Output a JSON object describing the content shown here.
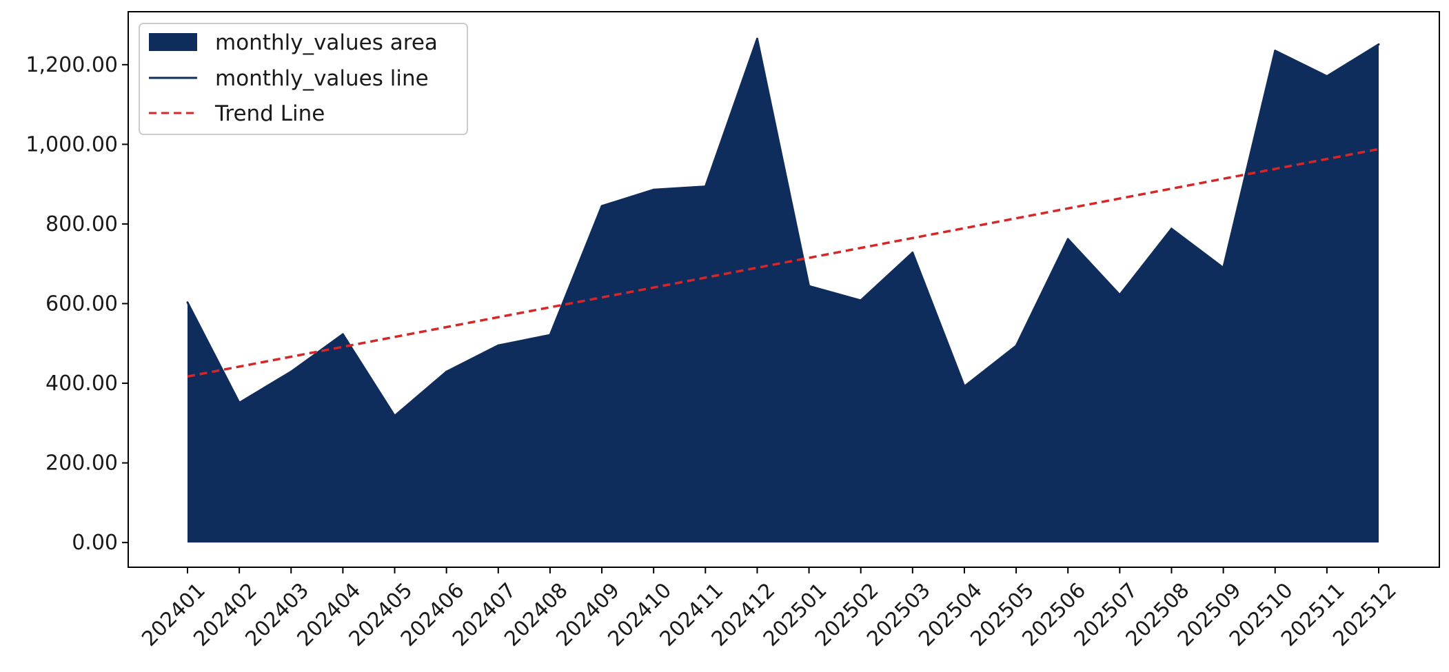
{
  "chart_data": {
    "type": "area",
    "categories": [
      "202401",
      "202402",
      "202403",
      "202404",
      "202405",
      "202406",
      "202407",
      "202408",
      "202409",
      "202410",
      "202411",
      "202412",
      "202501",
      "202502",
      "202503",
      "202504",
      "202505",
      "202506",
      "202507",
      "202508",
      "202509",
      "202510",
      "202511",
      "202512"
    ],
    "series": [
      {
        "name": "monthly_values area",
        "kind": "area",
        "color": "#0f2d5c",
        "values": [
          603,
          351,
          429,
          523,
          318,
          429,
          495,
          521,
          845,
          886,
          894,
          1265,
          644,
          608,
          728,
          392,
          494,
          762,
          622,
          788,
          690,
          1235,
          1171,
          1251
        ]
      },
      {
        "name": "monthly_values line",
        "kind": "line",
        "color": "#0f2d5c",
        "values": [
          603,
          351,
          429,
          523,
          318,
          429,
          495,
          521,
          845,
          886,
          894,
          1265,
          644,
          608,
          728,
          392,
          494,
          762,
          622,
          788,
          690,
          1235,
          1171,
          1251
        ]
      },
      {
        "name": "Trend Line",
        "kind": "line",
        "style": "dashed",
        "color": "#d62728",
        "start": 417,
        "end": 988
      }
    ],
    "yticks": [
      "0.00",
      "200.00",
      "400.00",
      "600.00",
      "800.00",
      "1,000.00",
      "1,200.00"
    ],
    "ylim": [
      -62,
      1333
    ],
    "grid": false,
    "legend_position": "upper-left",
    "title": "",
    "xlabel": "",
    "ylabel": ""
  }
}
